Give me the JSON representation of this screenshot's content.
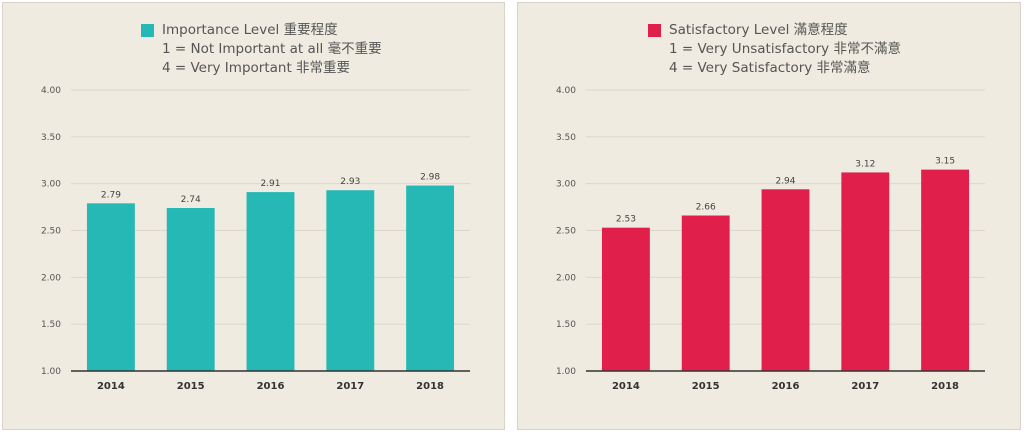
{
  "chart_data": [
    {
      "type": "bar",
      "categories": [
        "2014",
        "2015",
        "2016",
        "2017",
        "2018"
      ],
      "series": [
        {
          "name": "Importance Level 重要程度",
          "values": [
            2.79,
            2.74,
            2.91,
            2.93,
            2.98
          ]
        }
      ],
      "value_labels": [
        "2.79",
        "2.74",
        "2.91",
        "2.93",
        "2.98"
      ],
      "legend_lines": [
        "1 = Not Important at all 毫不重要",
        "4 = Very Important 非常重要"
      ],
      "ylim": [
        1.0,
        4.0
      ],
      "yticks": [
        "1.00",
        "1.50",
        "2.00",
        "2.50",
        "3.00",
        "3.50",
        "4.00"
      ],
      "grid": true,
      "legend_position": "top",
      "color": "#26b8b4"
    },
    {
      "type": "bar",
      "categories": [
        "2014",
        "2015",
        "2016",
        "2017",
        "2018"
      ],
      "series": [
        {
          "name": "Satisfactory Level 滿意程度",
          "values": [
            2.53,
            2.66,
            2.94,
            3.12,
            3.15
          ]
        }
      ],
      "value_labels": [
        "2.53",
        "2.66",
        "2.94",
        "3.12",
        "3.15"
      ],
      "legend_lines": [
        "1 = Very Unsatisfactory 非常不滿意",
        "4 = Very Satisfactory 非常滿意"
      ],
      "ylim": [
        1.0,
        4.0
      ],
      "yticks": [
        "1.00",
        "1.50",
        "2.00",
        "2.50",
        "3.00",
        "3.50",
        "4.00"
      ],
      "grid": true,
      "legend_position": "top",
      "color": "#e0204a"
    }
  ]
}
